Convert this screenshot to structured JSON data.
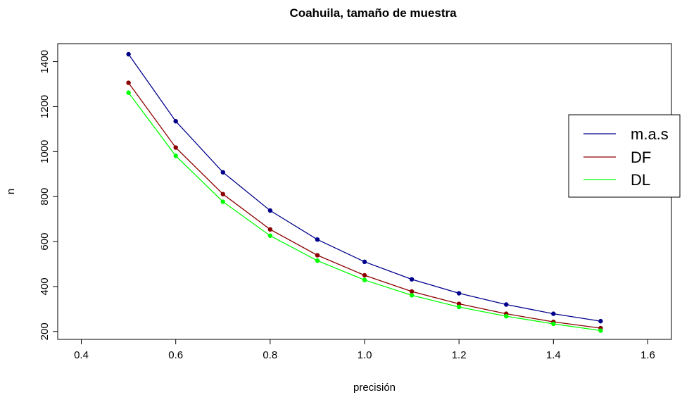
{
  "chart_data": {
    "type": "line",
    "title": "Coahuila, tamaño de muestra",
    "xlabel": "precisión",
    "ylabel": "n",
    "xlim": [
      0.35,
      1.65
    ],
    "ylim": [
      165,
      1480
    ],
    "x_ticks": [
      "0.4",
      "0.6",
      "0.8",
      "1.0",
      "1.2",
      "1.4",
      "1.6"
    ],
    "y_ticks": [
      "200",
      "400",
      "600",
      "800",
      "1000",
      "1200",
      "1400"
    ],
    "x": [
      0.5,
      0.6,
      0.7,
      0.8,
      0.9,
      1.0,
      1.1,
      1.2,
      1.3,
      1.4,
      1.5
    ],
    "series": [
      {
        "name": "m.a.s",
        "color": "#00008b",
        "values": [
          1433,
          1135,
          908,
          738,
          609,
          510,
          432,
          370,
          320,
          279,
          246
        ]
      },
      {
        "name": "DF",
        "color": "#8b0000",
        "values": [
          1306,
          1018,
          811,
          654,
          539,
          450,
          378,
          323,
          279,
          243,
          215
        ]
      },
      {
        "name": "DL",
        "color": "#00ff00",
        "values": [
          1262,
          981,
          777,
          626,
          515,
          429,
          361,
          309,
          268,
          234,
          204
        ]
      }
    ],
    "legend_position": "right",
    "grid": false
  }
}
